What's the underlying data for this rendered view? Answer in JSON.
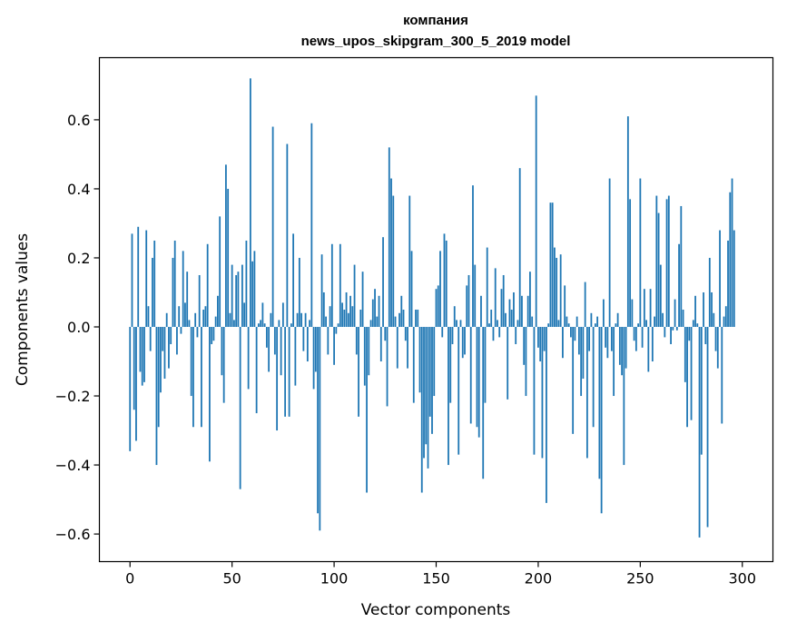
{
  "chart_data": {
    "type": "bar",
    "title": "компания",
    "subtitle": "news_upos_skipgram_300_5_2019 model",
    "xlabel": "Vector components",
    "ylabel": "Components values",
    "xlim": [
      -15,
      315
    ],
    "ylim": [
      -0.68,
      0.78
    ],
    "x_ticks": [
      0,
      50,
      100,
      150,
      200,
      250,
      300
    ],
    "x_tick_labels": [
      "0",
      "50",
      "100",
      "150",
      "200",
      "250",
      "300"
    ],
    "y_ticks": [
      -0.6,
      -0.4,
      -0.2,
      0.0,
      0.2,
      0.4,
      0.6
    ],
    "y_tick_labels": [
      "−0.6",
      "−0.4",
      "−0.2",
      "0.0",
      "0.2",
      "0.4",
      "0.6"
    ],
    "grid": false,
    "bar_color": "#1f77b4",
    "series": [
      {
        "values": [
          -0.36,
          0.27,
          -0.24,
          -0.33,
          0.29,
          -0.13,
          -0.17,
          -0.16,
          0.28,
          0.06,
          -0.07,
          0.2,
          0.25,
          -0.4,
          -0.29,
          -0.19,
          -0.07,
          -0.15,
          0.04,
          -0.12,
          -0.05,
          0.2,
          0.25,
          -0.08,
          0.06,
          -0.02,
          0.22,
          0.07,
          0.16,
          0.02,
          -0.2,
          -0.29,
          0.04,
          -0.03,
          0.15,
          -0.29,
          0.05,
          0.06,
          0.24,
          -0.39,
          -0.05,
          -0.04,
          0.03,
          0.09,
          0.32,
          -0.14,
          -0.22,
          0.47,
          0.4,
          0.04,
          0.18,
          0.02,
          0.15,
          0.16,
          -0.47,
          0.18,
          0.07,
          0.25,
          -0.18,
          0.72,
          0.19,
          0.22,
          -0.25,
          0.01,
          0.02,
          0.07,
          0.01,
          -0.06,
          -0.13,
          0.04,
          0.58,
          -0.08,
          -0.3,
          0.02,
          -0.14,
          0.07,
          -0.26,
          0.53,
          -0.26,
          0.01,
          0.27,
          -0.17,
          0.04,
          0.2,
          0.04,
          -0.07,
          0.04,
          -0.1,
          0.02,
          0.59,
          -0.18,
          -0.13,
          -0.54,
          -0.59,
          0.21,
          0.1,
          0.03,
          -0.08,
          0.06,
          0.24,
          -0.11,
          -0.02,
          0.01,
          0.24,
          0.07,
          0.05,
          0.1,
          0.04,
          0.09,
          0.06,
          0.18,
          -0.08,
          -0.26,
          0.05,
          0.16,
          -0.17,
          -0.48,
          -0.14,
          0.02,
          0.08,
          0.11,
          0.03,
          0.09,
          -0.1,
          0.26,
          -0.04,
          -0.23,
          0.52,
          0.43,
          0.38,
          0.03,
          -0.12,
          0.04,
          0.09,
          0.05,
          -0.04,
          -0.12,
          0.38,
          0.22,
          -0.22,
          0.05,
          0.05,
          -0.19,
          -0.48,
          -0.38,
          -0.34,
          -0.41,
          -0.26,
          -0.31,
          -0.2,
          0.11,
          0.12,
          0.22,
          -0.03,
          0.27,
          0.25,
          -0.4,
          -0.22,
          -0.05,
          0.06,
          0.02,
          -0.37,
          0.02,
          -0.09,
          -0.08,
          0.12,
          0.15,
          -0.28,
          0.41,
          0.18,
          -0.29,
          -0.32,
          0.09,
          -0.44,
          -0.22,
          0.23,
          0.01,
          0.05,
          -0.04,
          0.17,
          0.02,
          -0.03,
          0.11,
          0.15,
          0.04,
          -0.21,
          0.08,
          0.05,
          0.1,
          -0.05,
          0.02,
          0.46,
          0.09,
          -0.11,
          -0.2,
          0.09,
          0.16,
          0.03,
          -0.37,
          0.67,
          -0.06,
          -0.1,
          -0.38,
          -0.07,
          -0.51,
          0.01,
          0.36,
          0.36,
          0.23,
          0.2,
          0.02,
          0.21,
          -0.09,
          0.12,
          0.03,
          0.01,
          -0.03,
          -0.31,
          -0.04,
          0.03,
          -0.08,
          -0.2,
          -0.15,
          0.13,
          -0.38,
          -0.07,
          0.04,
          -0.29,
          0.01,
          0.03,
          -0.44,
          -0.54,
          0.08,
          -0.06,
          -0.09,
          0.43,
          -0.07,
          -0.2,
          0.01,
          0.04,
          -0.11,
          -0.14,
          -0.4,
          -0.12,
          0.61,
          0.37,
          0.08,
          -0.04,
          -0.07,
          0.01,
          0.43,
          -0.06,
          0.11,
          0.02,
          -0.13,
          0.11,
          -0.1,
          0.03,
          0.38,
          0.33,
          0.18,
          0.04,
          -0.03,
          0.37,
          0.38,
          -0.05,
          -0.01,
          0.08,
          -0.01,
          0.24,
          0.35,
          0.05,
          -0.16,
          -0.29,
          -0.04,
          -0.27,
          0.02,
          0.09,
          0.01,
          -0.61,
          -0.37,
          0.1,
          -0.05,
          -0.58,
          0.2,
          0.1,
          0.04,
          -0.07,
          -0.12,
          0.28,
          -0.28,
          0.03,
          0.06,
          0.25,
          0.39,
          0.43,
          0.28
        ]
      }
    ]
  }
}
